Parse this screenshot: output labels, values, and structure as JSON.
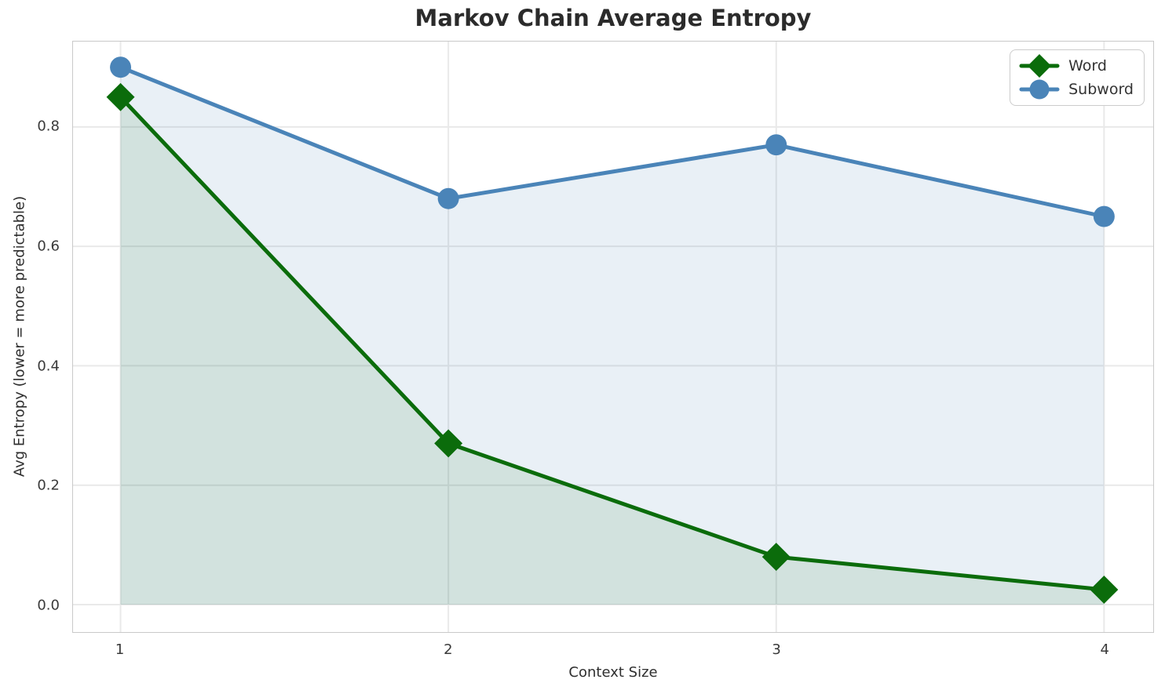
{
  "chart_data": {
    "type": "line",
    "title": "Markov Chain Average Entropy",
    "xlabel": "Context Size",
    "ylabel": "Avg Entropy (lower = more predictable)",
    "x": [
      1,
      2,
      3,
      4
    ],
    "series": [
      {
        "name": "Word",
        "values": [
          0.85,
          0.27,
          0.08,
          0.025
        ],
        "color": "#0b6c0b",
        "marker": "diamond",
        "fill_alpha": 0.1
      },
      {
        "name": "Subword",
        "values": [
          0.9,
          0.68,
          0.77,
          0.65
        ],
        "color": "#4a84b8",
        "marker": "circle",
        "fill_alpha": 0.12
      }
    ],
    "fill_to_zero": true,
    "xticks": [
      1,
      2,
      3,
      4
    ],
    "yticks": [
      0.0,
      0.2,
      0.4,
      0.6,
      0.8
    ],
    "ytick_labels": [
      "0.0",
      "0.2",
      "0.4",
      "0.6",
      "0.8"
    ],
    "xlim": [
      0.855,
      4.15
    ],
    "ylim": [
      -0.046,
      0.943
    ],
    "grid": true,
    "legend_position": "upper right",
    "colors": {
      "grid": "#e9e9e9",
      "spine": "#c9c9c9",
      "title": "#2b2b2b",
      "tick": "#3a3a3a",
      "background": "#ffffff"
    }
  }
}
